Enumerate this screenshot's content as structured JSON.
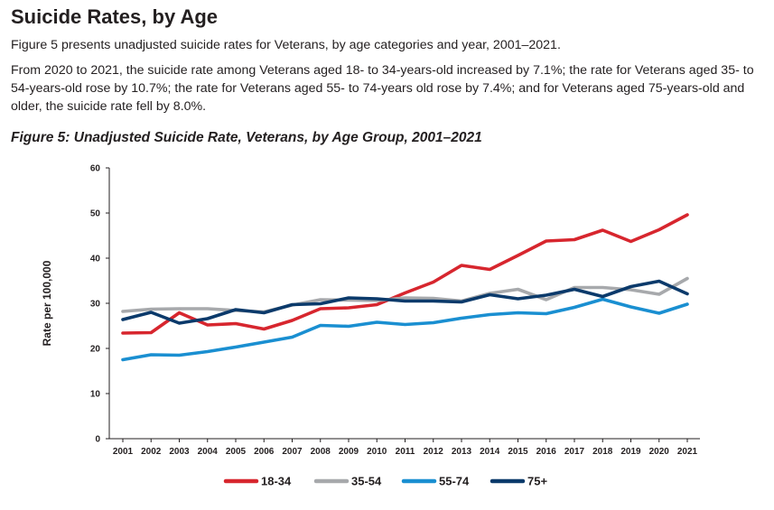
{
  "page": {
    "heading": "Suicide Rates, by Age",
    "paragraph1": "Figure 5 presents unadjusted suicide rates for Veterans, by age categories and year, 2001–2021.",
    "paragraph2": "From 2020 to 2021, the suicide rate among Veterans aged 18- to 34-years-old increased by 7.1%; the rate for Veterans aged 35- to 54-years-old rose by 10.7%; the rate for Veterans aged 55- to 74-years old rose by 7.4%; and for Veterans aged 75-years-old and older, the suicide rate fell by 8.0%.",
    "figure_title": "Figure 5: Unadjusted Suicide Rate, Veterans, by Age Group, 2001–2021"
  },
  "chart_data": {
    "type": "line",
    "title": "Figure 5: Unadjusted Suicide Rate, Veterans, by Age Group, 2001–2021",
    "xlabel": "",
    "ylabel": "Rate per 100,000",
    "ylim": [
      0,
      60
    ],
    "yticks": [
      0,
      10,
      20,
      30,
      40,
      50,
      60
    ],
    "grid": false,
    "legend_position": "bottom",
    "x": [
      "2001",
      "2002",
      "2003",
      "2004",
      "2005",
      "2006",
      "2007",
      "2008",
      "2009",
      "2010",
      "2011",
      "2012",
      "2013",
      "2014",
      "2015",
      "2016",
      "2017",
      "2018",
      "2019",
      "2020",
      "2021"
    ],
    "series": [
      {
        "name": "18-34",
        "color": "#d7262e",
        "values": [
          23.4,
          23.5,
          27.9,
          25.2,
          25.5,
          24.3,
          26.2,
          28.8,
          29.0,
          29.7,
          32.3,
          34.7,
          38.4,
          37.5,
          40.6,
          43.8,
          44.1,
          46.2,
          43.7,
          46.3,
          49.6
        ]
      },
      {
        "name": "35-54",
        "color": "#a7a9ac",
        "values": [
          28.2,
          28.7,
          28.8,
          28.8,
          28.4,
          28.1,
          29.6,
          30.8,
          30.7,
          30.6,
          31.2,
          31.1,
          30.5,
          32.2,
          33.1,
          30.8,
          33.5,
          33.5,
          33.0,
          32.0,
          35.5
        ]
      },
      {
        "name": "55-74",
        "color": "#1a8fd1",
        "values": [
          17.5,
          18.6,
          18.5,
          19.3,
          20.3,
          21.4,
          22.5,
          25.1,
          24.9,
          25.8,
          25.3,
          25.7,
          26.7,
          27.5,
          27.9,
          27.7,
          29.1,
          30.9,
          29.2,
          27.8,
          29.8
        ]
      },
      {
        "name": "75+",
        "color": "#0b3a6b",
        "values": [
          26.4,
          28.0,
          25.6,
          26.6,
          28.6,
          27.9,
          29.7,
          29.9,
          31.2,
          31.0,
          30.5,
          30.5,
          30.3,
          31.9,
          31.0,
          31.8,
          33.1,
          31.5,
          33.7,
          34.9,
          32.1
        ]
      }
    ]
  }
}
